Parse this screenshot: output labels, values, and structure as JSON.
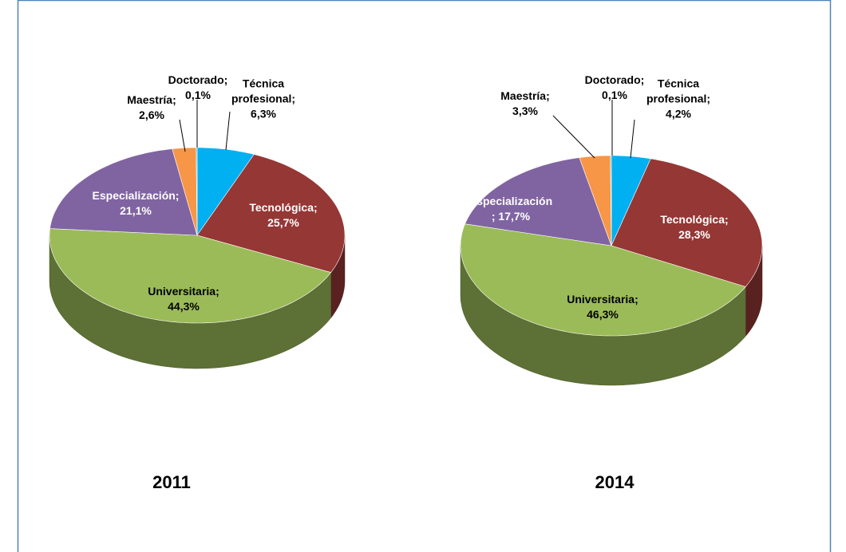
{
  "chart_data": [
    {
      "type": "pie",
      "title": "2011",
      "categories": [
        "Técnica profesional;",
        "Tecnológica;",
        "Universitaria;",
        "Especialización;",
        "Maestría;",
        "Doctorado;"
      ],
      "values": [
        6.3,
        25.7,
        44.3,
        21.1,
        2.6,
        0.1
      ],
      "value_labels": [
        "6,3%",
        "25,7%",
        "44,3%",
        "21,1%",
        "2,6%",
        "0,1%"
      ],
      "colors": [
        "#00b0f0",
        "#953735",
        "#9bbb59",
        "#8064a2",
        "#f79646",
        "#4bacc6"
      ]
    },
    {
      "type": "pie",
      "title": "2014",
      "categories": [
        "Técnica profesional;",
        "Tecnológica;",
        "Universitaria;",
        "Especialización",
        "Maestría;",
        "Doctorado;"
      ],
      "values": [
        4.2,
        28.3,
        46.3,
        17.7,
        3.3,
        0.1
      ],
      "value_labels": [
        "4,2%",
        "28,3%",
        "46,3%",
        "; 17,7%",
        "3,3%",
        "0,1%"
      ],
      "colors": [
        "#00b0f0",
        "#953735",
        "#9bbb59",
        "#8064a2",
        "#f79646",
        "#4bacc6"
      ]
    }
  ]
}
